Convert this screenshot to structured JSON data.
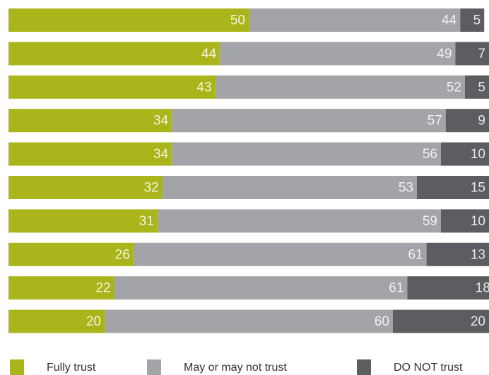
{
  "chart_data": {
    "type": "stacked-bar-horizontal",
    "categories": [
      null,
      null,
      null,
      null,
      null,
      null,
      null,
      null,
      null,
      null
    ],
    "xlim": [
      0,
      100
    ],
    "series": [
      {
        "name": "Fully trust",
        "color": "#a9b51a",
        "values": [
          50,
          44,
          43,
          34,
          34,
          32,
          31,
          26,
          22,
          20
        ]
      },
      {
        "name": "May or may not trust",
        "color": "#a3a4a8",
        "values": [
          44,
          49,
          52,
          57,
          56,
          53,
          59,
          61,
          61,
          60
        ]
      },
      {
        "name": "DO NOT trust",
        "color": "#5c5d61",
        "values": [
          5,
          7,
          5,
          9,
          10,
          15,
          10,
          13,
          18,
          20
        ]
      }
    ]
  }
}
